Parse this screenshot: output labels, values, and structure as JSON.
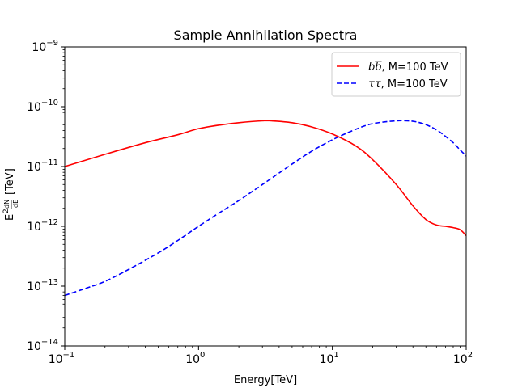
{
  "chart_data": {
    "type": "line",
    "title": "Sample Annihilation Spectra",
    "xlabel": "Energy[TeV]",
    "ylabel": "E^2 dN/dE [TeV]",
    "xscale": "log",
    "yscale": "log",
    "xlim": [
      0.1,
      100
    ],
    "ylim": [
      1e-14,
      1e-09
    ],
    "x_ticks": [
      {
        "mantissa": "10",
        "exponent": "−1"
      },
      {
        "mantissa": "10",
        "exponent": "0"
      },
      {
        "mantissa": "10",
        "exponent": "1"
      },
      {
        "mantissa": "10",
        "exponent": "2"
      }
    ],
    "y_ticks": [
      {
        "mantissa": "10",
        "exponent": "−14"
      },
      {
        "mantissa": "10",
        "exponent": "−13"
      },
      {
        "mantissa": "10",
        "exponent": "−12"
      },
      {
        "mantissa": "10",
        "exponent": "−11"
      },
      {
        "mantissa": "10",
        "exponent": "−10"
      },
      {
        "mantissa": "10",
        "exponent": "−9"
      }
    ],
    "legend_position": "top-right",
    "series": [
      {
        "name": "bb̄, M=100 TeV",
        "legend_label_italic": "b",
        "legend_label_overline": "b",
        "legend_label_rest": ", M=100 TeV",
        "color": "#ff0000",
        "style": "solid",
        "x": [
          0.1,
          0.2,
          0.4,
          0.7,
          1,
          1.5,
          2,
          3,
          3.5,
          5,
          7,
          10,
          15,
          20,
          30,
          40,
          50,
          60,
          70,
          80,
          90,
          100
        ],
        "y": [
          1e-11,
          1.6e-11,
          2.5e-11,
          3.4e-11,
          4.3e-11,
          5e-11,
          5.4e-11,
          5.8e-11,
          5.8e-11,
          5.4e-11,
          4.6e-11,
          3.5e-11,
          2.2e-11,
          1.3e-11,
          5e-12,
          2.2e-12,
          1.3e-12,
          1.05e-12,
          1e-12,
          9.5e-13,
          8.8e-13,
          7e-13
        ]
      },
      {
        "name": "ττ, M=100 TeV",
        "legend_label_italic": "ττ",
        "legend_label_overline": "",
        "legend_label_rest": ", M=100 TeV",
        "color": "#0000ff",
        "style": "dashed",
        "x": [
          0.1,
          0.15,
          0.2,
          0.3,
          0.5,
          0.7,
          1,
          1.5,
          2,
          3,
          5,
          7,
          10,
          15,
          20,
          30,
          40,
          50,
          60,
          70,
          80,
          90,
          100
        ],
        "y": [
          7e-14,
          9.5e-14,
          1.2e-13,
          1.9e-13,
          3.6e-13,
          5.8e-13,
          1e-12,
          1.8e-12,
          2.7e-12,
          5e-12,
          1.1e-11,
          1.8e-11,
          2.8e-11,
          4.2e-11,
          5.2e-11,
          5.8e-11,
          5.7e-11,
          5e-11,
          4.1e-11,
          3.2e-11,
          2.5e-11,
          1.9e-11,
          1.5e-11
        ]
      }
    ]
  }
}
